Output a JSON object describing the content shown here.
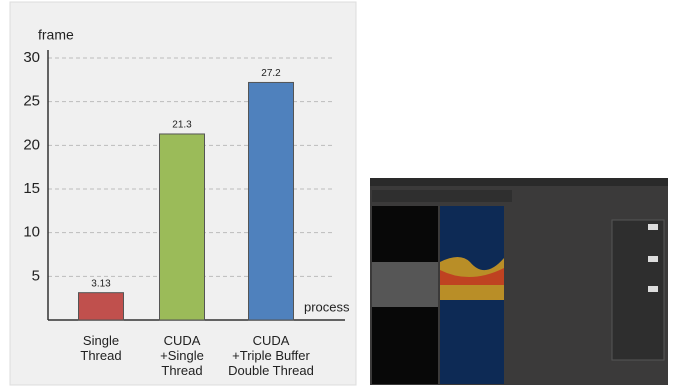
{
  "chart_data": {
    "type": "bar",
    "y_label": "frame",
    "x_label": "process",
    "categories": [
      [
        "Single",
        "Thread"
      ],
      [
        "CUDA",
        "+Single",
        "Thread"
      ],
      [
        "CUDA",
        "+Triple Buffer",
        "Double Thread"
      ]
    ],
    "values": [
      3.13,
      21.3,
      27.2
    ],
    "colors": [
      "#c0504d",
      "#9bbb59",
      "#4f81bd"
    ],
    "ylim": [
      0,
      30
    ],
    "yticks": [
      5,
      10,
      15,
      20,
      25,
      30
    ],
    "grid": true
  }
}
